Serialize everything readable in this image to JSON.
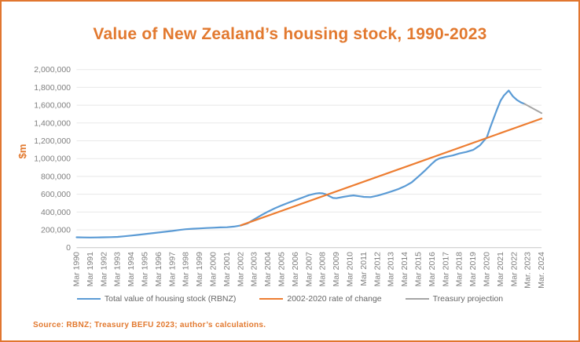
{
  "accent_color": "#E2792F",
  "frame": {
    "border_color": "#E1762F",
    "background": "#FFFFFF"
  },
  "chart_data": {
    "type": "line",
    "title": "Value of New Zealand’s housing stock, 1990-2023",
    "xlabel": "",
    "ylabel": "$m",
    "xlim": [
      1990,
      2024
    ],
    "ylim": [
      0,
      2000000
    ],
    "grid": true,
    "legend_position": "bottom",
    "grid_color": "#E8E8E8",
    "axis_line_color": "#C6C6C6",
    "tick_label_color": "#7F7F7F",
    "y_ticks": [
      0,
      200000,
      400000,
      600000,
      800000,
      1000000,
      1200000,
      1400000,
      1600000,
      1800000,
      2000000
    ],
    "y_tick_labels": [
      "0",
      "200,000",
      "400,000",
      "600,000",
      "800,000",
      "1,000,000",
      "1,200,000",
      "1,400,000",
      "1,600,000",
      "1,800,000",
      "2,000,000"
    ],
    "x_tick_years": [
      1990,
      1991,
      1992,
      1993,
      1994,
      1995,
      1996,
      1997,
      1998,
      1999,
      2000,
      2001,
      2002,
      2003,
      2004,
      2005,
      2006,
      2007,
      2008,
      2009,
      2010,
      2011,
      2012,
      2013,
      2014,
      2015,
      2016,
      2017,
      2018,
      2019,
      2020,
      2021,
      2022,
      2023,
      2024
    ],
    "x_tick_labels": [
      "Mar 1990",
      "Mar 1991",
      "Mar 1992",
      "Mar 1993",
      "Mar 1994",
      "Mar 1995",
      "Mar 1996",
      "Mar 1997",
      "Mar 1998",
      "Mar 1999",
      "Mar 2000",
      "Mar 2001",
      "Mar 2002",
      "Mar 2003",
      "Mar 2004",
      "Mar 2005",
      "Mar 2006",
      "Mar 2007",
      "Mar 2008",
      "Mar 2009",
      "Mar 2010",
      "Mar 2011",
      "Mar 2012",
      "Mar 2013",
      "Mar 2014",
      "Mar 2015",
      "Mar 2016",
      "Mar 2017",
      "Mar 2018",
      "Mar 2019",
      "Mar 2020",
      "Mar 2021",
      "Mar 2022",
      "Mar. 2023",
      "Mar. 2024"
    ],
    "series": [
      {
        "name": "Total value of housing stock (RBNZ)",
        "color": "#5B9BD5",
        "width": 2.2,
        "points": [
          [
            1990.0,
            116000
          ],
          [
            1990.5,
            114500
          ],
          [
            1991.0,
            114000
          ],
          [
            1991.5,
            114500
          ],
          [
            1992.0,
            116000
          ],
          [
            1992.5,
            118000
          ],
          [
            1993.0,
            121000
          ],
          [
            1993.5,
            128000
          ],
          [
            1994.0,
            136000
          ],
          [
            1994.5,
            144000
          ],
          [
            1995.0,
            152000
          ],
          [
            1995.5,
            161000
          ],
          [
            1996.0,
            170000
          ],
          [
            1996.5,
            179000
          ],
          [
            1997.0,
            188000
          ],
          [
            1997.5,
            198000
          ],
          [
            1998.0,
            207000
          ],
          [
            1998.5,
            212000
          ],
          [
            1999.0,
            216000
          ],
          [
            1999.5,
            220000
          ],
          [
            2000.0,
            224000
          ],
          [
            2000.5,
            227000
          ],
          [
            2001.0,
            229000
          ],
          [
            2001.5,
            236000
          ],
          [
            2002.0,
            249000
          ],
          [
            2002.5,
            272000
          ],
          [
            2003.0,
            320000
          ],
          [
            2003.5,
            364000
          ],
          [
            2004.0,
            405000
          ],
          [
            2004.5,
            442000
          ],
          [
            2005.0,
            475000
          ],
          [
            2005.5,
            505000
          ],
          [
            2006.0,
            533000
          ],
          [
            2006.5,
            561000
          ],
          [
            2007.0,
            590000
          ],
          [
            2007.5,
            608000
          ],
          [
            2007.75,
            612000
          ],
          [
            2008.0,
            610000
          ],
          [
            2008.25,
            598000
          ],
          [
            2008.5,
            576000
          ],
          [
            2008.75,
            558000
          ],
          [
            2009.0,
            555000
          ],
          [
            2009.5,
            570000
          ],
          [
            2010.0,
            582000
          ],
          [
            2010.25,
            587000
          ],
          [
            2010.75,
            576000
          ],
          [
            2011.0,
            570000
          ],
          [
            2011.5,
            567000
          ],
          [
            2012.0,
            584000
          ],
          [
            2012.5,
            606000
          ],
          [
            2013.0,
            630000
          ],
          [
            2013.5,
            656000
          ],
          [
            2014.0,
            690000
          ],
          [
            2014.5,
            733000
          ],
          [
            2015.0,
            800000
          ],
          [
            2015.5,
            870000
          ],
          [
            2016.0,
            945000
          ],
          [
            2016.25,
            980000
          ],
          [
            2016.5,
            1000000
          ],
          [
            2017.0,
            1020000
          ],
          [
            2017.5,
            1035000
          ],
          [
            2018.0,
            1058000
          ],
          [
            2018.5,
            1075000
          ],
          [
            2019.0,
            1098000
          ],
          [
            2019.5,
            1150000
          ],
          [
            2020.0,
            1240000
          ],
          [
            2020.25,
            1350000
          ],
          [
            2020.5,
            1455000
          ],
          [
            2020.75,
            1555000
          ],
          [
            2021.0,
            1650000
          ],
          [
            2021.25,
            1710000
          ],
          [
            2021.6,
            1765000
          ],
          [
            2021.9,
            1700000
          ],
          [
            2022.2,
            1658000
          ],
          [
            2022.5,
            1630000
          ],
          [
            2022.75,
            1615000
          ]
        ]
      },
      {
        "name": "2002-2020 rate of change",
        "color": "#ED7D31",
        "width": 2.2,
        "points": [
          [
            2002.0,
            250000
          ],
          [
            2024.0,
            1450000
          ]
        ]
      },
      {
        "name": "Treasury projection",
        "color": "#A5A5A5",
        "width": 2.0,
        "points": [
          [
            2022.75,
            1615000
          ],
          [
            2024.0,
            1510000
          ]
        ]
      }
    ]
  },
  "source": {
    "text": "Source: RBNZ; Treasury BEFU 2023; author’s calculations."
  }
}
